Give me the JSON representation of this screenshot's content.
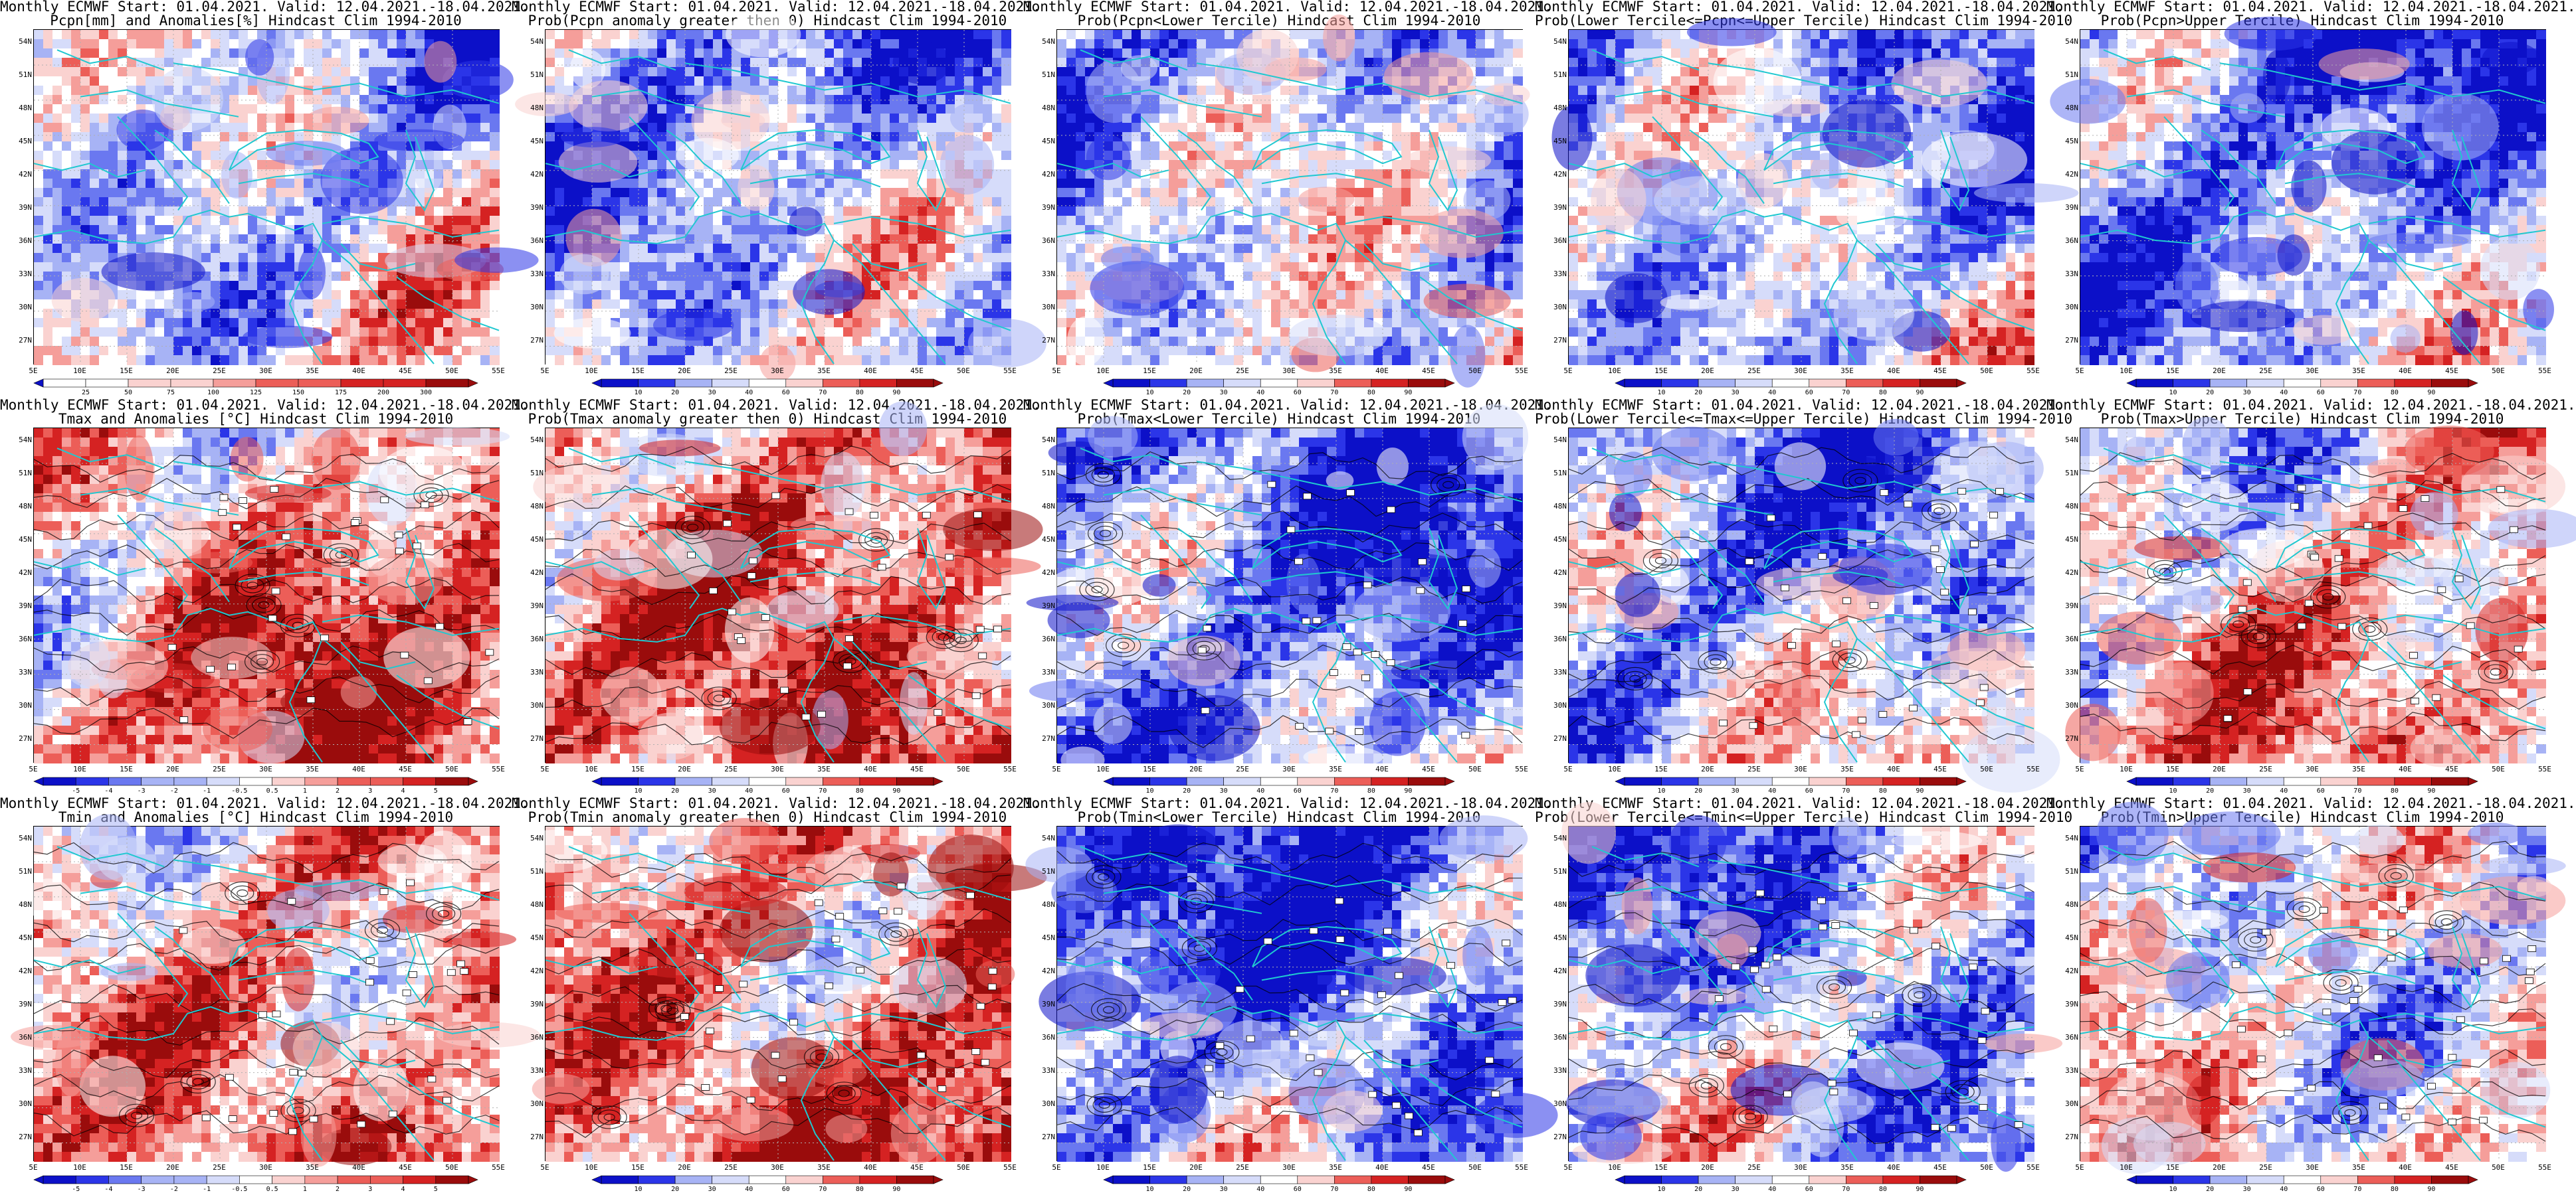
{
  "colors": {
    "blue_scale": [
      "#0c10c8",
      "#2b35e8",
      "#6a78f0",
      "#a7b3f5",
      "#d6dcfa",
      "#ffffff",
      "#fad2d0",
      "#f59e9a",
      "#ec5e58",
      "#d52222",
      "#9a0c0c"
    ],
    "coast": "#20c8d0",
    "contour": "#000000",
    "grid": "#b0b0b0"
  },
  "axes": {
    "lat_labels": [
      "54N",
      "51N",
      "48N",
      "45N",
      "42N",
      "39N",
      "36N",
      "33N",
      "30N",
      "27N"
    ],
    "lon_labels": [
      "5E",
      "10E",
      "15E",
      "20E",
      "25E",
      "30E",
      "35E",
      "40E",
      "45E",
      "50E",
      "55E"
    ]
  },
  "colorbars": {
    "precip": [
      "25",
      "50",
      "75",
      "100",
      "125",
      "150",
      "175",
      "200",
      "300"
    ],
    "prob": [
      "10",
      "20",
      "30",
      "40",
      "60",
      "70",
      "80",
      "90"
    ],
    "anom": [
      "-5",
      "-4",
      "-3",
      "-2",
      "-1",
      "-0.5",
      "0.5",
      "1",
      "2",
      "3",
      "4",
      "5"
    ]
  },
  "panels": [
    {
      "id": "pcpn-anomaly",
      "row": 0,
      "col": 0,
      "title1": "Monthly ECMWF Start: 01.04.2021. Valid: 12.04.2021.-18.04.2021.",
      "title2": "Pcpn[mm] and Anomalies[%] Hindcast Clim 1994-2010",
      "bar": "precip",
      "bias": -0.15,
      "contours": false
    },
    {
      "id": "prob-pcpn-gt0",
      "row": 0,
      "col": 1,
      "title1": "Monthly ECMWF Start: 01.04.2021. Valid: 12.04.2021.-18.04.2021.",
      "title2": "Prob(Pcpn anomaly greater then 0) Hindcast Clim 1994-2010",
      "bar": "prob",
      "bias": -0.35,
      "contours": false
    },
    {
      "id": "prob-pcpn-lower",
      "row": 0,
      "col": 2,
      "title1": "Monthly ECMWF Start: 01.04.2021. Valid: 12.04.2021.-18.04.2021.",
      "title2": "Prob(Pcpn<Lower Tercile) Hindcast Clim 1994-2010",
      "bar": "prob",
      "bias": -0.25,
      "contours": false
    },
    {
      "id": "prob-pcpn-middle",
      "row": 0,
      "col": 3,
      "title1": "Monthly ECMWF Start: 01.04.2021. Valid: 12.04.2021.-18.04.2021.",
      "title2": "Prob(Lower Tercile<=Pcpn<=Upper Tercile) Hindcast Clim 1994-2010",
      "bar": "prob",
      "bias": -0.3,
      "contours": false
    },
    {
      "id": "prob-pcpn-upper",
      "row": 0,
      "col": 4,
      "title1": "Monthly ECMWF Start: 01.04.2021. Valid: 12.04.2021.-18.04.2021.",
      "title2": "Prob(Pcpn>Upper Tercile) Hindcast Clim 1994-2010",
      "bar": "prob",
      "bias": -0.45,
      "contours": false
    },
    {
      "id": "tmax-anomaly",
      "row": 1,
      "col": 0,
      "title1": "Monthly ECMWF Start: 01.04.2021. Valid: 12.04.2021.-18.04.2021.",
      "title2": "Tmax and Anomalies [°C] Hindcast Clim 1994-2010",
      "bar": "anom",
      "bias": 0.3,
      "contours": true
    },
    {
      "id": "prob-tmax-gt0",
      "row": 1,
      "col": 1,
      "title1": "Monthly ECMWF Start: 01.04.2021. Valid: 12.04.2021.-18.04.2021.",
      "title2": "Prob(Tmax anomaly greater then 0) Hindcast Clim 1994-2010",
      "bar": "prob",
      "bias": 0.4,
      "contours": true
    },
    {
      "id": "prob-tmax-lower",
      "row": 1,
      "col": 2,
      "title1": "Monthly ECMWF Start: 01.04.2021. Valid: 12.04.2021.-18.04.2021.",
      "title2": "Prob(Tmax<Lower Tercile) Hindcast Clim 1994-2010",
      "bar": "prob",
      "bias": -0.55,
      "contours": true
    },
    {
      "id": "prob-tmax-middle",
      "row": 1,
      "col": 3,
      "title1": "Monthly ECMWF Start: 01.04.2021. Valid: 12.04.2021.-18.04.2021.",
      "title2": "Prob(Lower Tercile<=Tmax<=Upper Tercile) Hindcast Clim 1994-2010",
      "bar": "prob",
      "bias": -0.3,
      "contours": true
    },
    {
      "id": "prob-tmax-upper",
      "row": 1,
      "col": 4,
      "title1": "Monthly ECMWF Start: 01.04.2021. Valid: 12.04.2021.-18.04.2021.",
      "title2": "Prob(Tmax>Upper Tercile) Hindcast Clim 1994-2010",
      "bar": "prob",
      "bias": 0.05,
      "contours": true
    },
    {
      "id": "tmin-anomaly",
      "row": 2,
      "col": 0,
      "title1": "Monthly ECMWF Start: 01.04.2021. Valid: 12.04.2021.-18.04.2021.",
      "title2": "Tmin and Anomalies [°C] Hindcast Clim 1994-2010",
      "bar": "anom",
      "bias": 0.25,
      "contours": true
    },
    {
      "id": "prob-tmin-gt0",
      "row": 2,
      "col": 1,
      "title1": "Monthly ECMWF Start: 01.04.2021. Valid: 12.04.2021.-18.04.2021.",
      "title2": "Prob(Tmin anomaly greater then 0) Hindcast Clim 1994-2010",
      "bar": "prob",
      "bias": 0.4,
      "contours": true
    },
    {
      "id": "prob-tmin-lower",
      "row": 2,
      "col": 2,
      "title1": "Monthly ECMWF Start: 01.04.2021. Valid: 12.04.2021.-18.04.2021.",
      "title2": "Prob(Tmin<Lower Tercile) Hindcast Clim 1994-2010",
      "bar": "prob",
      "bias": -0.55,
      "contours": true
    },
    {
      "id": "prob-tmin-middle",
      "row": 2,
      "col": 3,
      "title1": "Monthly ECMWF Start: 01.04.2021. Valid: 12.04.2021.-18.04.2021.",
      "title2": "Prob(Lower Tercile<=Tmin<=Upper Tercile) Hindcast Clim 1994-2010",
      "bar": "prob",
      "bias": -0.35,
      "contours": true
    },
    {
      "id": "prob-tmin-upper",
      "row": 2,
      "col": 4,
      "title1": "Monthly ECMWF Start: 01.04.2021. Valid: 12.04.2021.-18.04.2021.",
      "title2": "Prob(Tmin>Upper Tercile) Hindcast Clim 1994-2010",
      "bar": "prob",
      "bias": 0.0,
      "contours": true
    }
  ]
}
